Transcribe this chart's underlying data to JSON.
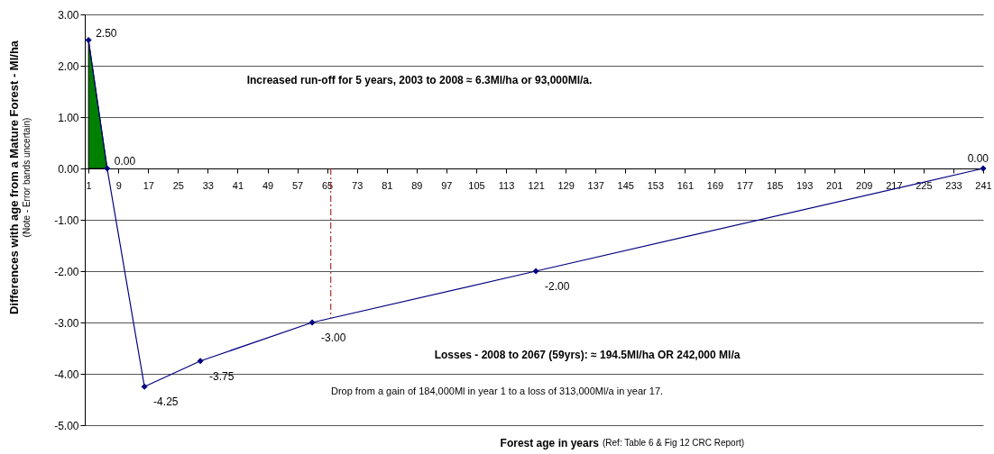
{
  "chart_data": {
    "type": "line",
    "xlabel": "Forest age in years",
    "ylabel": "Differences with age from a Mature Forest - Ml/ha",
    "annotations": [
      "(Ref: Table 6 & Fig 12 CRC Report)",
      "(Note - Error bands uncertain)",
      "Increased run-off for 5 years, 2003 to 2008 ≈  6.3Ml/ha or 93,000Ml/a.",
      "Losses - 2008 to 2067 (59yrs):  ≈ 194.5Ml/ha OR 242,000 Ml/a",
      "Drop from a gain of 184,000Ml in year 1 to a loss of 313,000Ml/a in year 17."
    ],
    "series": [
      {
        "type": "area",
        "color": "#008000",
        "x": [
          1,
          6
        ],
        "values": [
          2.5,
          0
        ]
      },
      {
        "color": "#000080",
        "x": [
          1,
          6,
          16,
          31,
          61,
          121,
          241
        ],
        "values": [
          2.5,
          0,
          -4.25,
          -3.75,
          -3,
          -2,
          0
        ],
        "marker": "diamond",
        "value_labels": [
          "2.50",
          "0.00",
          "-4.25",
          "-3.75",
          "-3.00",
          "-2.00",
          "0.00"
        ]
      }
    ],
    "xlim": [
      0,
      241
    ],
    "xticks": [
      1,
      9,
      17,
      25,
      33,
      41,
      49,
      57,
      65,
      73,
      81,
      89,
      97,
      105,
      113,
      121,
      129,
      137,
      145,
      153,
      161,
      169,
      177,
      185,
      193,
      201,
      209,
      217,
      225,
      233,
      241
    ],
    "ylim": [
      -5,
      3
    ],
    "yticks": [
      {
        "value": -5,
        "label": "-5.00"
      },
      {
        "value": -4,
        "label": "-4.00"
      },
      {
        "value": -3,
        "label": "-3.00"
      },
      {
        "value": -2,
        "label": "-2.00"
      },
      {
        "value": -1,
        "label": "-1.00"
      },
      {
        "value": 0,
        "label": "0.00"
      },
      {
        "value": 1,
        "label": "1.00"
      },
      {
        "value": 2,
        "label": "2.00"
      },
      {
        "value": 3,
        "label": "3.00"
      }
    ],
    "grid": "y",
    "ref_lines": [
      {
        "axis": "x",
        "value": 66,
        "color": "#a00000",
        "line_style": "dashed"
      }
    ]
  }
}
